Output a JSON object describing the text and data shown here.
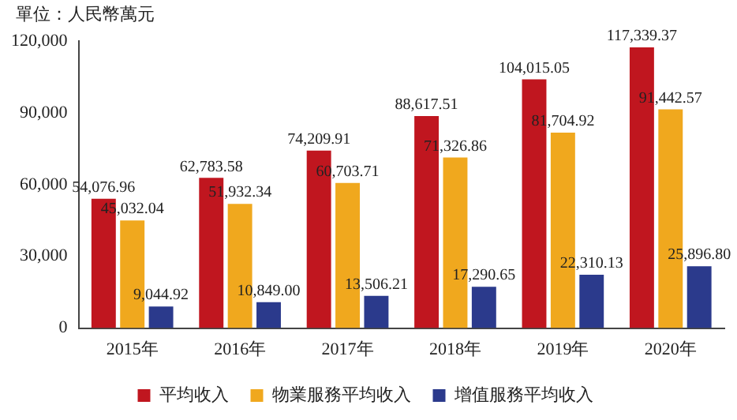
{
  "chart_data": {
    "type": "bar",
    "ylabel": "單位：人民幣萬元",
    "categories": [
      "2015年",
      "2016年",
      "2017年",
      "2018年",
      "2019年",
      "2020年"
    ],
    "series": [
      {
        "name": "平均收入",
        "color": "#c0161f",
        "values": [
          54076.96,
          62783.58,
          74209.91,
          88617.51,
          104015.05,
          117339.37
        ],
        "value_labels": [
          "54,076.96",
          "62,783.58",
          "74,209.91",
          "88,617.51",
          "104,015.05",
          "117,339.37"
        ]
      },
      {
        "name": "物業服務平均收入",
        "color": "#f0a81e",
        "values": [
          45032.04,
          51932.34,
          60703.71,
          71326.86,
          81704.92,
          91442.57
        ],
        "value_labels": [
          "45,032.04",
          "51,932.34",
          "60,703.71",
          "71,326.86",
          "81,704.92",
          "91,442.57"
        ]
      },
      {
        "name": "增值服務平均收入",
        "color": "#2b3a8c",
        "values": [
          9044.92,
          10849.0,
          13506.21,
          17290.65,
          22310.13,
          25896.8
        ],
        "value_labels": [
          "9,044.92",
          "10,849.00",
          "13,506.21",
          "17,290.65",
          "22,310.13",
          "25,896.80"
        ]
      }
    ],
    "ylim": [
      0,
      120000
    ],
    "yticks": [
      {
        "value": 0,
        "label": "0"
      },
      {
        "value": 30000,
        "label": "30,000"
      },
      {
        "value": 60000,
        "label": "60,000"
      },
      {
        "value": 90000,
        "label": "90,000"
      },
      {
        "value": 120000,
        "label": "120,000"
      }
    ],
    "grid": false,
    "legend": "bottom"
  }
}
